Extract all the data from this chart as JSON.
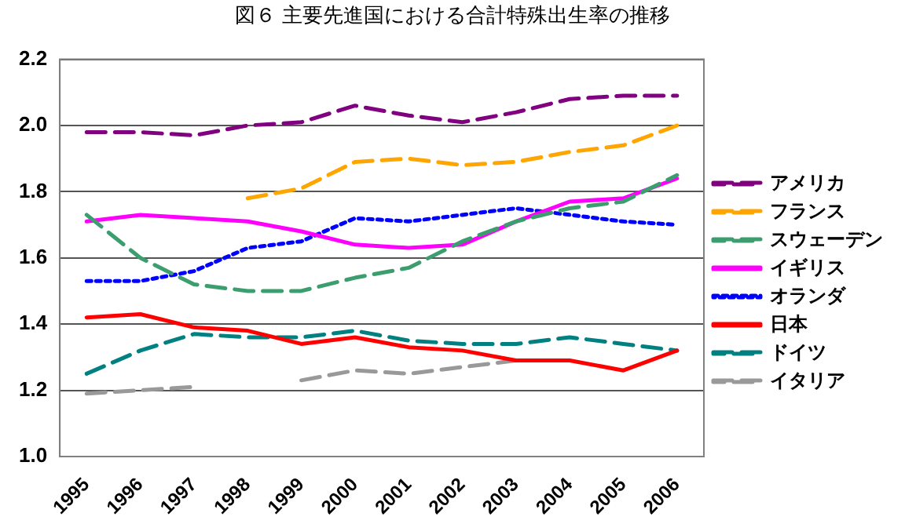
{
  "chart_data": {
    "type": "line",
    "title": "図６ 主要先進国における合計特殊出生率の推移",
    "categories": [
      "1995",
      "1996",
      "1997",
      "1998",
      "1999",
      "2000",
      "2001",
      "2002",
      "2003",
      "2004",
      "2005",
      "2006"
    ],
    "series": [
      {
        "name": "アメリカ",
        "color": "#800080",
        "line_style": "dashed",
        "values": [
          1.98,
          1.98,
          1.97,
          2.0,
          2.01,
          2.06,
          2.03,
          2.01,
          2.04,
          2.08,
          2.09,
          2.09
        ]
      },
      {
        "name": "フランス",
        "color": "#ffa500",
        "line_style": "dashed",
        "values": [
          null,
          null,
          null,
          1.78,
          1.81,
          1.89,
          1.9,
          1.88,
          1.89,
          1.92,
          1.94,
          2.0
        ]
      },
      {
        "name": "スウェーデン",
        "color": "#3c9e6e",
        "line_style": "dashed",
        "values": [
          1.73,
          1.6,
          1.52,
          1.5,
          1.5,
          1.54,
          1.57,
          1.65,
          1.71,
          1.75,
          1.77,
          1.85
        ]
      },
      {
        "name": "イギリス",
        "color": "#ff00ff",
        "line_style": "solid",
        "values": [
          1.71,
          1.73,
          1.72,
          1.71,
          1.68,
          1.64,
          1.63,
          1.64,
          1.71,
          1.77,
          1.78,
          1.84
        ]
      },
      {
        "name": "オランダ",
        "color": "#0000ff",
        "line_style": "dotted",
        "values": [
          1.53,
          1.53,
          1.56,
          1.63,
          1.65,
          1.72,
          1.71,
          1.73,
          1.75,
          1.73,
          1.71,
          1.7
        ]
      },
      {
        "name": "日本",
        "color": "#ff0000",
        "line_style": "solid",
        "values": [
          1.42,
          1.43,
          1.39,
          1.38,
          1.34,
          1.36,
          1.33,
          1.32,
          1.29,
          1.29,
          1.26,
          1.32
        ]
      },
      {
        "name": "ドイツ",
        "color": "#008080",
        "line_style": "dashed",
        "values": [
          1.25,
          1.32,
          1.37,
          1.36,
          1.36,
          1.38,
          1.35,
          1.34,
          1.34,
          1.36,
          1.34,
          1.32
        ]
      },
      {
        "name": "イタリア",
        "color": "#999999",
        "line_style": "dashed",
        "values": [
          1.19,
          1.2,
          1.21,
          null,
          1.23,
          1.26,
          1.25,
          1.27,
          1.29,
          null,
          null,
          null
        ]
      }
    ],
    "ylim": [
      1.0,
      2.2
    ],
    "yticks": [
      {
        "value": 1.0,
        "label": "1.0"
      },
      1.2,
      1.4,
      1.6,
      1.8,
      {
        "value": 2.0,
        "label": "2.0"
      },
      2.2
    ],
    "grid": "y",
    "legend": "right",
    "marker": "none"
  }
}
